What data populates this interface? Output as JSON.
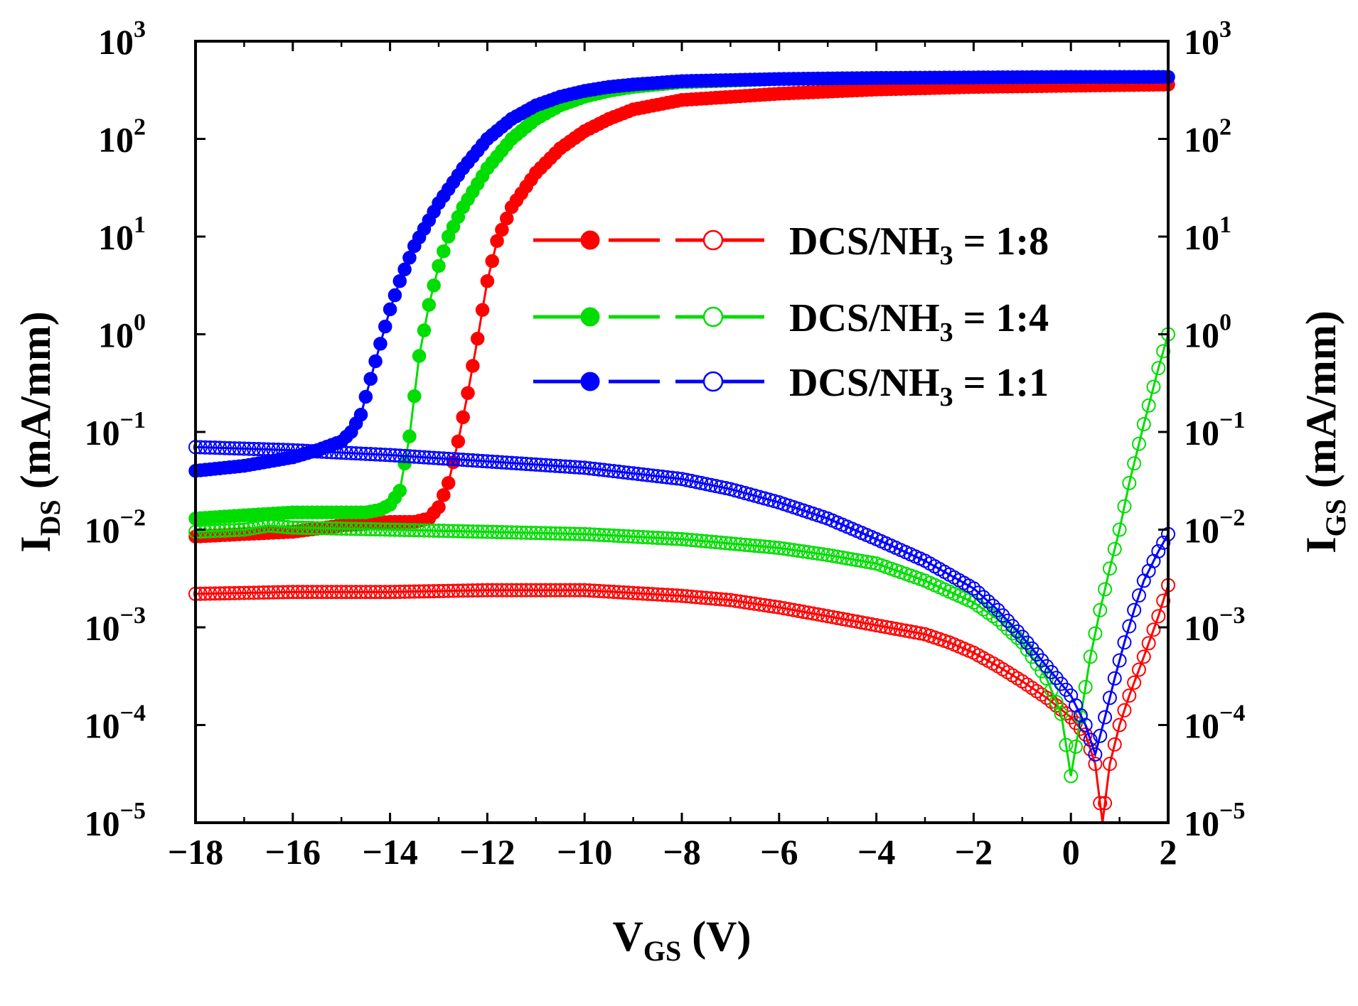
{
  "chart_data": {
    "type": "line",
    "title": "",
    "xlabel": {
      "main": "V",
      "sub": "GS",
      "unit": " (V)"
    },
    "ylabel_left": {
      "main": "I",
      "sub": "DS",
      "unit": " (mA/mm)"
    },
    "ylabel_right": {
      "main": "I",
      "sub": "GS",
      "unit": " (mA/mm)"
    },
    "x_range": [
      -18,
      2
    ],
    "x_ticks": [
      -18,
      -16,
      -14,
      -12,
      -10,
      -8,
      -6,
      -4,
      -2,
      0,
      2
    ],
    "x_tick_labels": [
      "−18",
      "−16",
      "−14",
      "−12",
      "−10",
      "−8",
      "−6",
      "−4",
      "−2",
      "0",
      "2"
    ],
    "y_scale": "log",
    "y_range": [
      1e-05,
      1000
    ],
    "y_tick_exponents": [
      3,
      2,
      1,
      0,
      -1,
      -2,
      -3,
      -4,
      -5
    ],
    "y_tick_exponent_labels": [
      "3",
      "2",
      "1",
      "0",
      "−1",
      "−2",
      "−3",
      "−4",
      "−5"
    ],
    "y_tick_base": "10",
    "legend_position": "center-right",
    "legend": [
      {
        "prefix": "DCS/NH",
        "sub": "3",
        "suffix": " = 1:8",
        "color": "#ff0000"
      },
      {
        "prefix": "DCS/NH",
        "sub": "3",
        "suffix": " = 1:4",
        "color": "#00dd00"
      },
      {
        "prefix": "DCS/NH",
        "sub": "3",
        "suffix": " = 1:1",
        "color": "#0000ff"
      }
    ],
    "series": [
      {
        "color": "#ff0000",
        "quantity": "IDS",
        "marker": "filled-circle",
        "x": [
          -18,
          -17,
          -16,
          -15,
          -14,
          -13.5,
          -13.2,
          -13,
          -12.8,
          -12.6,
          -12.4,
          -12.2,
          -12,
          -11.8,
          -11.5,
          -11,
          -10.5,
          -10,
          -9.5,
          -9,
          -8,
          -6,
          -4,
          -2,
          0,
          2
        ],
        "y": [
          0.0085,
          0.009,
          0.0095,
          0.011,
          0.012,
          0.012,
          0.013,
          0.017,
          0.03,
          0.08,
          0.25,
          0.9,
          3.5,
          9,
          20,
          45,
          80,
          120,
          160,
          200,
          250,
          290,
          320,
          340,
          350,
          360
        ]
      },
      {
        "color": "#ff0000",
        "quantity": "IGS",
        "marker": "open-circle",
        "x": [
          -18,
          -16,
          -14,
          -12,
          -10,
          -8,
          -7,
          -6,
          -5,
          -4,
          -3,
          -2.5,
          -2,
          -1.5,
          -1,
          -0.5,
          0,
          0.3,
          0.5,
          0.65,
          0.8,
          1.0,
          1.2,
          1.5,
          1.8,
          2
        ],
        "y": [
          0.0022,
          0.0023,
          0.0023,
          0.0024,
          0.0024,
          0.0021,
          0.0019,
          0.0016,
          0.0013,
          0.00105,
          0.00085,
          0.0007,
          0.00055,
          0.0004,
          0.00028,
          0.00019,
          0.00012,
          8e-05,
          4e-05,
          1e-05,
          4e-05,
          0.0001,
          0.0002,
          0.0005,
          0.0013,
          0.0027
        ]
      },
      {
        "color": "#00dd00",
        "quantity": "IDS",
        "marker": "filled-circle",
        "x": [
          -18,
          -17,
          -16,
          -15,
          -14.5,
          -14.2,
          -14,
          -13.8,
          -13.6,
          -13.4,
          -13.2,
          -13,
          -12.8,
          -12.5,
          -12,
          -11.5,
          -11,
          -10.5,
          -10,
          -9.5,
          -9,
          -8,
          -6,
          -4,
          -2,
          0,
          2
        ],
        "y": [
          0.013,
          0.014,
          0.015,
          0.015,
          0.015,
          0.016,
          0.018,
          0.025,
          0.09,
          0.6,
          2,
          5,
          10,
          20,
          50,
          100,
          160,
          220,
          270,
          310,
          340,
          380,
          410,
          420,
          425,
          430,
          430
        ]
      },
      {
        "color": "#00dd00",
        "quantity": "IGS",
        "marker": "open-circle",
        "x": [
          -18,
          -17,
          -16.5,
          -16,
          -14,
          -12,
          -10,
          -8,
          -6,
          -5,
          -4,
          -3,
          -2,
          -1.5,
          -1,
          -0.5,
          -0.2,
          0,
          0.2,
          0.4,
          0.6,
          0.8,
          1.0,
          1.2,
          1.5,
          1.8,
          2
        ],
        "y": [
          0.0095,
          0.01,
          0.011,
          0.0105,
          0.01,
          0.0095,
          0.009,
          0.008,
          0.0065,
          0.0055,
          0.0045,
          0.003,
          0.0018,
          0.0012,
          0.0007,
          0.0003,
          0.00013,
          3e-05,
          0.00012,
          0.0005,
          0.0015,
          0.004,
          0.01,
          0.03,
          0.12,
          0.45,
          1.0
        ]
      },
      {
        "color": "#0000ff",
        "quantity": "IDS",
        "marker": "filled-circle",
        "x": [
          -18,
          -17,
          -16,
          -15.5,
          -15,
          -14.8,
          -14.6,
          -14.4,
          -14.2,
          -14,
          -13.8,
          -13.5,
          -13,
          -12.5,
          -12,
          -11.5,
          -11,
          -10.5,
          -10,
          -9.5,
          -9,
          -8,
          -6,
          -4,
          -2,
          0,
          2
        ],
        "y": [
          0.04,
          0.045,
          0.055,
          0.065,
          0.08,
          0.1,
          0.15,
          0.35,
          0.8,
          1.8,
          3.5,
          8,
          22,
          50,
          100,
          160,
          220,
          270,
          310,
          340,
          360,
          390,
          410,
          420,
          425,
          430,
          430
        ]
      },
      {
        "color": "#0000ff",
        "quantity": "IGS",
        "marker": "open-circle",
        "x": [
          -18,
          -16,
          -14,
          -12,
          -10,
          -8,
          -7,
          -6,
          -5,
          -4,
          -3,
          -2,
          -1.5,
          -1,
          -0.5,
          0,
          0.3,
          0.5,
          0.7,
          0.9,
          1.1,
          1.3,
          1.5,
          1.8,
          2
        ],
        "y": [
          0.07,
          0.065,
          0.058,
          0.05,
          0.043,
          0.033,
          0.026,
          0.019,
          0.013,
          0.008,
          0.0048,
          0.0025,
          0.0015,
          0.0008,
          0.0004,
          0.0002,
          0.0001,
          5e-05,
          0.00012,
          0.0003,
          0.0007,
          0.0015,
          0.003,
          0.006,
          0.009
        ]
      }
    ]
  }
}
